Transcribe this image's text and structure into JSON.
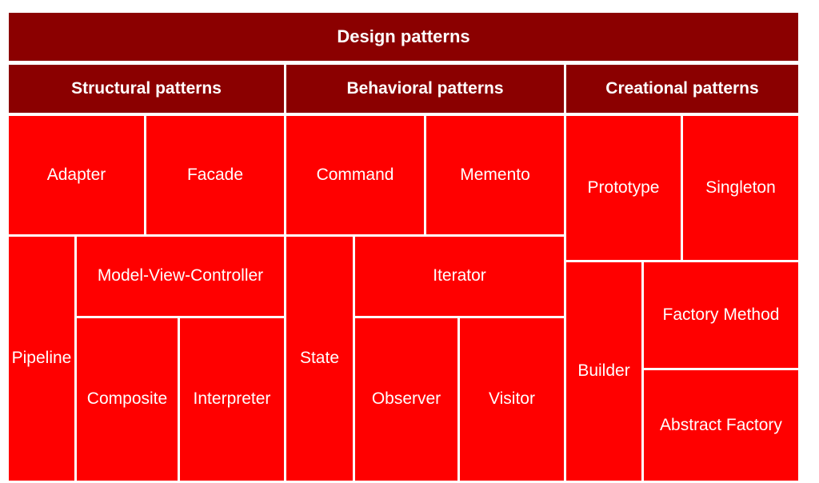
{
  "title": "Design patterns",
  "groups": [
    {
      "name": "Structural patterns",
      "patterns": [
        "Adapter",
        "Facade",
        "Pipeline",
        "Model-View-Controller",
        "Composite",
        "Interpreter"
      ]
    },
    {
      "name": "Behavioral patterns",
      "patterns": [
        "Command",
        "Memento",
        "State",
        "Iterator",
        "Observer",
        "Visitor"
      ]
    },
    {
      "name": "Creational patterns",
      "patterns": [
        "Prototype",
        "Singleton",
        "Builder",
        "Factory Method",
        "Abstract Factory"
      ]
    }
  ],
  "colors": {
    "header": "#8b0000",
    "leaf": "#ff0000",
    "text": "#ffffff",
    "gap": "#ffffff"
  }
}
